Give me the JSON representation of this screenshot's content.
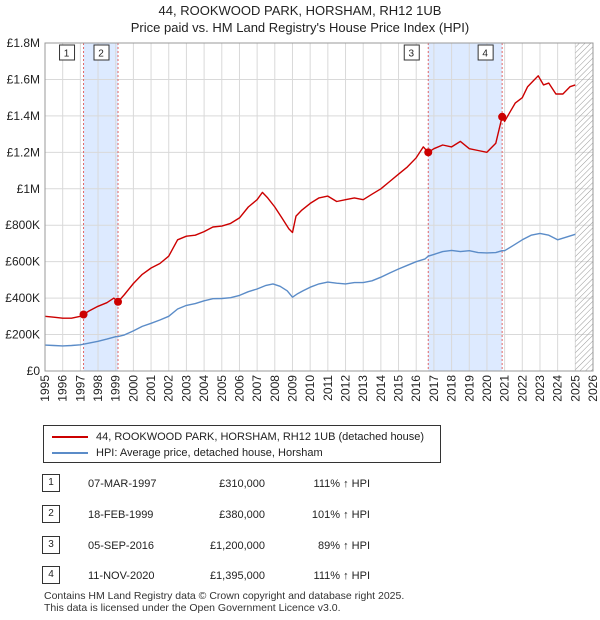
{
  "title": {
    "line1": "44, ROOKWOOD PARK, HORSHAM, RH12 1UB",
    "line2": "Price paid vs. HM Land Registry's House Price Index (HPI)"
  },
  "colors": {
    "property": "#cc0000",
    "hpi": "#5b8cc8",
    "shade": "#ddeaff",
    "grid": "#d9d9d9",
    "marker_line": "#e06666"
  },
  "chart_data": {
    "type": "line",
    "xlim": [
      1995,
      2026
    ],
    "ylim": [
      0,
      1800000
    ],
    "yticks": [
      {
        "value": 0,
        "label": "£0"
      },
      {
        "value": 200000,
        "label": "£200K"
      },
      {
        "value": 400000,
        "label": "£400K"
      },
      {
        "value": 600000,
        "label": "£600K"
      },
      {
        "value": 800000,
        "label": "£800K"
      },
      {
        "value": 1000000,
        "label": "£1M"
      },
      {
        "value": 1200000,
        "label": "£1.2M"
      },
      {
        "value": 1400000,
        "label": "£1.4M"
      },
      {
        "value": 1600000,
        "label": "£1.6M"
      },
      {
        "value": 1800000,
        "label": "£1.8M"
      }
    ],
    "xticks": [
      1995,
      1996,
      1997,
      1998,
      1999,
      2000,
      2001,
      2002,
      2003,
      2004,
      2005,
      2006,
      2007,
      2008,
      2009,
      2010,
      2011,
      2012,
      2013,
      2014,
      2015,
      2016,
      2017,
      2018,
      2019,
      2020,
      2021,
      2022,
      2023,
      2024,
      2025,
      2026
    ],
    "shaded_ranges": [
      [
        1997.18,
        1999.13
      ],
      [
        2016.68,
        2020.86
      ]
    ],
    "hatch_from": 2025.0,
    "series": [
      {
        "name": "44, ROOKWOOD PARK, HORSHAM, RH12 1UB (detached house)",
        "x": [
          1995.0,
          1995.5,
          1996.0,
          1996.5,
          1997.0,
          1997.18,
          1997.5,
          1998.0,
          1998.5,
          1998.9,
          1999.13,
          1999.5,
          2000.0,
          2000.5,
          2001.0,
          2001.5,
          2002.0,
          2002.5,
          2003.0,
          2003.5,
          2004.0,
          2004.5,
          2005.0,
          2005.5,
          2006.0,
          2006.5,
          2007.0,
          2007.3,
          2007.6,
          2008.0,
          2008.4,
          2008.8,
          2009.0,
          2009.2,
          2009.5,
          2010.0,
          2010.5,
          2011.0,
          2011.5,
          2012.0,
          2012.5,
          2013.0,
          2013.5,
          2014.0,
          2014.5,
          2015.0,
          2015.5,
          2016.0,
          2016.4,
          2016.68,
          2017.0,
          2017.5,
          2018.0,
          2018.5,
          2019.0,
          2019.5,
          2020.0,
          2020.5,
          2020.86,
          2021.0,
          2021.3,
          2021.6,
          2022.0,
          2022.3,
          2022.6,
          2022.9,
          2023.2,
          2023.5,
          2023.9,
          2024.3,
          2024.7,
          2025.0
        ],
        "values": [
          300000,
          295000,
          290000,
          290000,
          300000,
          310000,
          330000,
          355000,
          375000,
          400000,
          380000,
          420000,
          480000,
          530000,
          565000,
          590000,
          630000,
          720000,
          740000,
          745000,
          765000,
          790000,
          795000,
          810000,
          840000,
          900000,
          940000,
          980000,
          950000,
          900000,
          840000,
          780000,
          760000,
          850000,
          880000,
          920000,
          950000,
          960000,
          930000,
          940000,
          950000,
          940000,
          970000,
          1000000,
          1040000,
          1080000,
          1120000,
          1170000,
          1230000,
          1200000,
          1220000,
          1240000,
          1230000,
          1260000,
          1220000,
          1210000,
          1200000,
          1250000,
          1395000,
          1370000,
          1420000,
          1470000,
          1500000,
          1560000,
          1590000,
          1620000,
          1570000,
          1580000,
          1520000,
          1520000,
          1560000,
          1570000
        ]
      },
      {
        "name": "HPI: Average price, detached house, Horsham",
        "x": [
          1995.0,
          1995.5,
          1996.0,
          1996.5,
          1997.0,
          1997.18,
          1997.5,
          1998.0,
          1998.5,
          1999.0,
          1999.13,
          1999.5,
          2000.0,
          2000.5,
          2001.0,
          2001.5,
          2002.0,
          2002.5,
          2003.0,
          2003.5,
          2004.0,
          2004.5,
          2005.0,
          2005.5,
          2006.0,
          2006.5,
          2007.0,
          2007.5,
          2007.9,
          2008.3,
          2008.7,
          2009.0,
          2009.3,
          2009.6,
          2010.0,
          2010.5,
          2011.0,
          2011.5,
          2012.0,
          2012.5,
          2013.0,
          2013.5,
          2014.0,
          2014.5,
          2015.0,
          2015.5,
          2016.0,
          2016.5,
          2016.68,
          2017.0,
          2017.5,
          2018.0,
          2018.5,
          2019.0,
          2019.5,
          2020.0,
          2020.5,
          2020.86,
          2021.0,
          2021.5,
          2022.0,
          2022.5,
          2023.0,
          2023.5,
          2024.0,
          2024.5,
          2025.0
        ],
        "values": [
          142000,
          140000,
          138000,
          140000,
          144000,
          147000,
          153000,
          163000,
          175000,
          188000,
          189000,
          198000,
          220000,
          245000,
          262000,
          280000,
          300000,
          340000,
          360000,
          370000,
          385000,
          397000,
          398000,
          402000,
          415000,
          435000,
          450000,
          470000,
          478000,
          465000,
          440000,
          405000,
          425000,
          440000,
          460000,
          478000,
          488000,
          482000,
          478000,
          485000,
          485000,
          495000,
          515000,
          538000,
          560000,
          580000,
          600000,
          615000,
          630000,
          640000,
          655000,
          662000,
          655000,
          660000,
          650000,
          648000,
          650000,
          660000,
          660000,
          690000,
          720000,
          745000,
          755000,
          745000,
          720000,
          735000,
          750000
        ]
      }
    ],
    "sales": [
      {
        "id": "1",
        "x": 1997.18,
        "value": 310000
      },
      {
        "id": "2",
        "x": 1999.13,
        "value": 380000
      },
      {
        "id": "3",
        "x": 2016.68,
        "value": 1200000
      },
      {
        "id": "4",
        "x": 2020.86,
        "value": 1395000
      }
    ]
  },
  "legend": {
    "property_label": "44, ROOKWOOD PARK, HORSHAM, RH12 1UB (detached house)",
    "hpi_label": "HPI: Average price, detached house, Horsham"
  },
  "transactions": [
    {
      "id": "1",
      "date": "07-MAR-1997",
      "price": "£310,000",
      "hpi": "111% ↑ HPI"
    },
    {
      "id": "2",
      "date": "18-FEB-1999",
      "price": "£380,000",
      "hpi": "101% ↑ HPI"
    },
    {
      "id": "3",
      "date": "05-SEP-2016",
      "price": "£1,200,000",
      "hpi": "89% ↑ HPI"
    },
    {
      "id": "4",
      "date": "11-NOV-2020",
      "price": "£1,395,000",
      "hpi": "111% ↑ HPI"
    }
  ],
  "footer": {
    "line1": "Contains HM Land Registry data © Crown copyright and database right 2025.",
    "line2": "This data is licensed under the Open Government Licence v3.0."
  }
}
